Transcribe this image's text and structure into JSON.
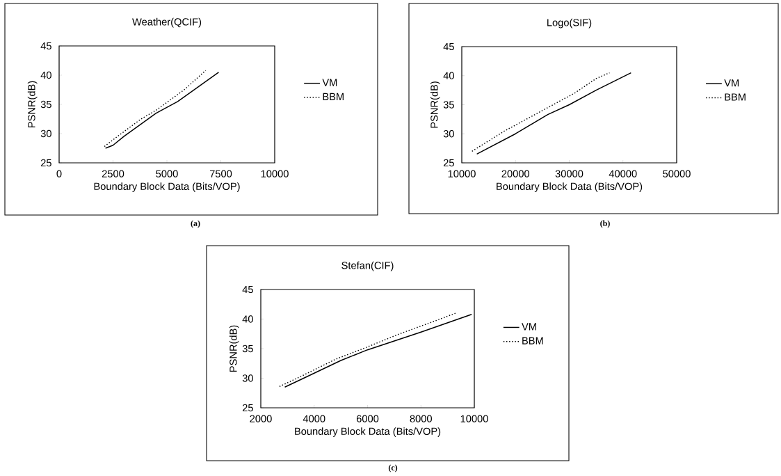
{
  "chart_data": [
    {
      "type": "line",
      "title": "Weather(QCIF)",
      "xlabel": "Boundary Block Data (Bits/VOP)",
      "ylabel": "PSNR(dB)",
      "xlim": [
        0,
        10000
      ],
      "ylim": [
        25,
        45
      ],
      "xticks": [
        0,
        2500,
        5000,
        7500,
        10000
      ],
      "yticks": [
        25,
        30,
        35,
        40,
        45
      ],
      "legend": "right",
      "annotations": [
        "(a)"
      ],
      "series": [
        {
          "name": "VM",
          "color": "#000000",
          "line_style": "solid",
          "x": [
            2150,
            2500,
            3000,
            4500,
            5500,
            7400
          ],
          "values": [
            27.5,
            28,
            29.5,
            33.5,
            35.5,
            40.5
          ]
        },
        {
          "name": "BBM",
          "color": "#000000",
          "line_style": "dotted",
          "x": [
            2100,
            2700,
            3800,
            4500,
            5800,
            6800
          ],
          "values": [
            27.8,
            29.5,
            32.5,
            34,
            37.5,
            40.8
          ]
        }
      ]
    },
    {
      "type": "line",
      "title": "Logo(SIF)",
      "xlabel": "Boundary Block Data (Bits/VOP)",
      "ylabel": "PSNR(dB)",
      "xlim": [
        10000,
        50000
      ],
      "ylim": [
        25,
        45
      ],
      "xticks": [
        10000,
        20000,
        30000,
        40000,
        50000
      ],
      "yticks": [
        25,
        30,
        35,
        40,
        45
      ],
      "legend": "right",
      "annotations": [
        "(b)"
      ],
      "series": [
        {
          "name": "VM",
          "color": "#000000",
          "line_style": "solid",
          "x": [
            12800,
            20000,
            26000,
            30000,
            35000,
            41500
          ],
          "values": [
            26.5,
            30,
            33.3,
            35,
            37.5,
            40.5
          ]
        },
        {
          "name": "BBM",
          "color": "#000000",
          "line_style": "dotted",
          "x": [
            11900,
            18000,
            23000,
            27000,
            31000,
            35000,
            37500
          ],
          "values": [
            27,
            30.5,
            33,
            35,
            37,
            39.5,
            40.5
          ]
        }
      ]
    },
    {
      "type": "line",
      "title": "Stefan(CIF)",
      "xlabel": "Boundary Block Data (Bits/VOP)",
      "ylabel": "PSNR(dB)",
      "xlim": [
        2000,
        10000
      ],
      "ylim": [
        25,
        45
      ],
      "xticks": [
        2000,
        4000,
        6000,
        8000,
        10000
      ],
      "yticks": [
        25,
        30,
        35,
        40,
        45
      ],
      "legend": "right",
      "annotations": [
        "(c)"
      ],
      "series": [
        {
          "name": "VM",
          "color": "#000000",
          "line_style": "solid",
          "x": [
            2900,
            3700,
            5000,
            6000,
            8000,
            9900
          ],
          "values": [
            28.5,
            30.2,
            33,
            34.8,
            37.8,
            40.8
          ]
        },
        {
          "name": "BBM",
          "color": "#000000",
          "line_style": "dotted",
          "x": [
            2700,
            3500,
            4800,
            6000,
            7200,
            8600,
            9300
          ],
          "values": [
            28.6,
            30.3,
            33.2,
            35.3,
            37.5,
            39.8,
            41
          ]
        }
      ]
    }
  ]
}
